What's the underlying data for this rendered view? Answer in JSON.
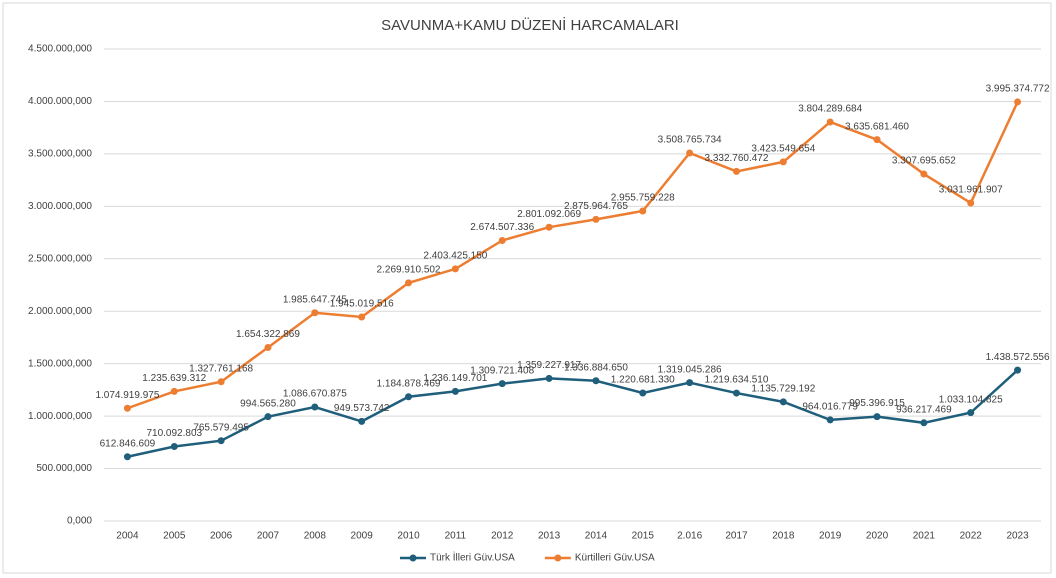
{
  "chart_data": {
    "type": "line",
    "title": "SAVUNMA+KAMU DÜZENİ HARCAMALARI",
    "categories": [
      "2004",
      "2005",
      "2006",
      "2007",
      "2008",
      "2009",
      "2010",
      "2011",
      "2012",
      "2013",
      "2014",
      "2015",
      "2.016",
      "2017",
      "2018",
      "2019",
      "2020",
      "2021",
      "2022",
      "2023"
    ],
    "series": [
      {
        "name": "Türk İlleri Güv.USA",
        "color": "#1f5f7b",
        "values": [
          612846609,
          710092803,
          765579495,
          994565280,
          1086670875,
          949573742,
          1184878469,
          1236149701,
          1309721408,
          1359227917,
          1336884650,
          1220681330,
          1319045286,
          1219634510,
          1135729192,
          964016779,
          995396915,
          936217469,
          1033104825,
          1438572556
        ],
        "value_labels": [
          "612.846.609",
          "710.092.803",
          "765.579.495",
          "994.565.280",
          "1.086.670.875",
          "949.573.742",
          "1.184.878.469",
          "1.236.149.701",
          "1.309.721.408",
          "1.359.227.917",
          "1.336.884.650",
          "1.220.681.330",
          "1.319.045.286",
          "1.219.634.510",
          "1.135.729.192",
          "964.016.779",
          "995.396.915",
          "936.217.469",
          "1.033.104.825",
          "1.438.572.556"
        ]
      },
      {
        "name": "Kürtilleri Güv.USA",
        "color": "#ed7d31",
        "values": [
          1074919975,
          1235639312,
          1327761168,
          1654322869,
          1985647745,
          1945019516,
          2269910502,
          2403425150,
          2674507336,
          2801092069,
          2875964765,
          2955759228,
          3508765734,
          3332760472,
          3423549654,
          3804289684,
          3635681460,
          3307695652,
          3031961907,
          3995374772
        ],
        "value_labels": [
          "1.074.919.975",
          "1.235.639.312",
          "1.327.761.168",
          "1.654.322.869",
          "1.985.647.745",
          "1.945.019.516",
          "2.269.910.502",
          "2.403.425.150",
          "2.674.507.336",
          "2.801.092.069",
          "2.875.964.765",
          "2.955.759.228",
          "3.508.765.734",
          "3.332.760.472",
          "3.423.549.654",
          "3.804.289.684",
          "3.635.681.460",
          "3.307.695.652",
          "3.031.961.907",
          "3.995.374.772"
        ]
      }
    ],
    "ylim": [
      0,
      4500000000
    ],
    "yticks": [
      {
        "value": 0,
        "label": "0,000"
      },
      {
        "value": 500000000,
        "label": "500.000,000"
      },
      {
        "value": 1000000000,
        "label": "1.000.000,000"
      },
      {
        "value": 1500000000,
        "label": "1.500.000,000"
      },
      {
        "value": 2000000000,
        "label": "2.000.000,000"
      },
      {
        "value": 2500000000,
        "label": "2.500.000,000"
      },
      {
        "value": 3000000000,
        "label": "3.000.000,000"
      },
      {
        "value": 3500000000,
        "label": "3.500.000,000"
      },
      {
        "value": 4000000000,
        "label": "4.000.000,000"
      },
      {
        "value": 4500000000,
        "label": "4.500.000,000"
      }
    ],
    "grid": true,
    "legend": "bottom"
  }
}
